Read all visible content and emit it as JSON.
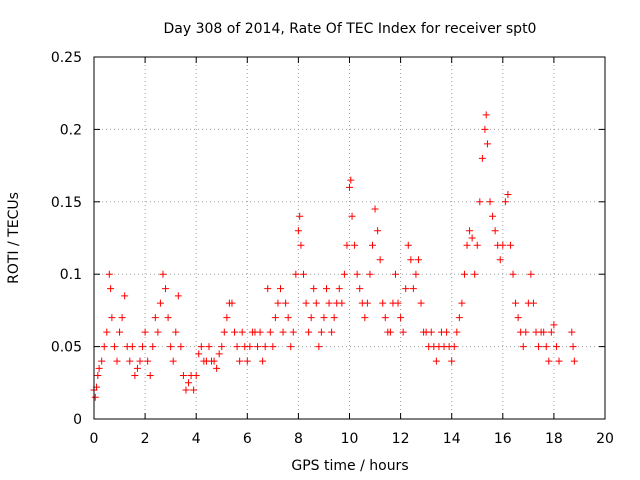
{
  "chart_data": {
    "type": "scatter",
    "title": "Day 308 of 2014, Rate Of TEC Index for receiver spt0",
    "xlabel": "GPS time / hours",
    "ylabel": "ROTI / TECUs",
    "xlim": [
      0,
      20
    ],
    "ylim": [
      0,
      0.25
    ],
    "xticks": [
      "0",
      "2",
      "4",
      "6",
      "8",
      "10",
      "12",
      "14",
      "16",
      "18",
      "20"
    ],
    "yticks": [
      "0",
      "0.05",
      "0.1",
      "0.15",
      "0.2",
      "0.25"
    ],
    "grid": true,
    "marker": "+",
    "color": "#ff0000",
    "series": [
      {
        "name": "ROTI spt0",
        "x": [
          0.0,
          0.05,
          0.1,
          0.15,
          0.2,
          0.3,
          0.4,
          0.5,
          0.6,
          0.65,
          0.7,
          0.8,
          0.9,
          1.0,
          1.1,
          1.2,
          1.3,
          1.4,
          1.5,
          1.6,
          1.7,
          1.8,
          1.9,
          2.0,
          2.1,
          2.2,
          2.3,
          2.4,
          2.5,
          2.6,
          2.7,
          2.8,
          2.9,
          3.0,
          3.1,
          3.2,
          3.3,
          3.4,
          3.5,
          3.6,
          3.7,
          3.8,
          3.9,
          4.0,
          4.1,
          4.2,
          4.3,
          4.4,
          4.5,
          4.6,
          4.7,
          4.8,
          4.9,
          5.0,
          5.1,
          5.2,
          5.3,
          5.4,
          5.5,
          5.6,
          5.7,
          5.8,
          5.9,
          6.0,
          6.1,
          6.2,
          6.3,
          6.4,
          6.5,
          6.6,
          6.7,
          6.8,
          6.9,
          7.0,
          7.1,
          7.2,
          7.3,
          7.4,
          7.5,
          7.6,
          7.7,
          7.8,
          7.9,
          8.0,
          8.05,
          8.1,
          8.2,
          8.3,
          8.4,
          8.5,
          8.6,
          8.7,
          8.8,
          8.9,
          9.0,
          9.1,
          9.2,
          9.3,
          9.4,
          9.5,
          9.6,
          9.7,
          9.8,
          9.9,
          10.0,
          10.05,
          10.1,
          10.2,
          10.3,
          10.4,
          10.5,
          10.6,
          10.7,
          10.8,
          10.9,
          11.0,
          11.1,
          11.2,
          11.3,
          11.4,
          11.5,
          11.6,
          11.7,
          11.8,
          11.9,
          12.0,
          12.1,
          12.2,
          12.3,
          12.4,
          12.5,
          12.6,
          12.7,
          12.8,
          12.9,
          13.0,
          13.1,
          13.2,
          13.3,
          13.4,
          13.5,
          13.6,
          13.7,
          13.8,
          13.9,
          14.0,
          14.1,
          14.2,
          14.3,
          14.4,
          14.5,
          14.6,
          14.7,
          14.8,
          14.9,
          15.0,
          15.1,
          15.2,
          15.3,
          15.35,
          15.4,
          15.5,
          15.6,
          15.7,
          15.8,
          15.9,
          16.0,
          16.1,
          16.2,
          16.3,
          16.4,
          16.5,
          16.6,
          16.7,
          16.8,
          16.9,
          17.0,
          17.1,
          17.2,
          17.3,
          17.4,
          17.5,
          17.6,
          17.7,
          17.8,
          17.9,
          18.0,
          18.1,
          18.2,
          18.7,
          18.75,
          18.8
        ],
        "y": [
          0.02,
          0.015,
          0.022,
          0.03,
          0.035,
          0.04,
          0.05,
          0.06,
          0.1,
          0.09,
          0.07,
          0.05,
          0.04,
          0.06,
          0.07,
          0.085,
          0.05,
          0.04,
          0.05,
          0.03,
          0.035,
          0.04,
          0.05,
          0.06,
          0.04,
          0.03,
          0.05,
          0.07,
          0.06,
          0.08,
          0.1,
          0.09,
          0.07,
          0.05,
          0.04,
          0.06,
          0.085,
          0.05,
          0.03,
          0.02,
          0.025,
          0.03,
          0.02,
          0.03,
          0.045,
          0.05,
          0.04,
          0.04,
          0.05,
          0.04,
          0.04,
          0.035,
          0.045,
          0.05,
          0.06,
          0.07,
          0.08,
          0.08,
          0.06,
          0.05,
          0.04,
          0.06,
          0.05,
          0.04,
          0.05,
          0.06,
          0.06,
          0.05,
          0.06,
          0.04,
          0.05,
          0.09,
          0.06,
          0.05,
          0.07,
          0.08,
          0.09,
          0.06,
          0.08,
          0.07,
          0.05,
          0.06,
          0.1,
          0.13,
          0.14,
          0.12,
          0.1,
          0.08,
          0.06,
          0.07,
          0.09,
          0.08,
          0.05,
          0.06,
          0.07,
          0.09,
          0.08,
          0.06,
          0.07,
          0.08,
          0.09,
          0.08,
          0.1,
          0.12,
          0.16,
          0.165,
          0.14,
          0.12,
          0.1,
          0.09,
          0.08,
          0.07,
          0.08,
          0.1,
          0.12,
          0.145,
          0.13,
          0.11,
          0.08,
          0.07,
          0.06,
          0.06,
          0.08,
          0.1,
          0.08,
          0.07,
          0.06,
          0.09,
          0.12,
          0.11,
          0.09,
          0.1,
          0.11,
          0.08,
          0.06,
          0.06,
          0.05,
          0.06,
          0.05,
          0.04,
          0.05,
          0.06,
          0.05,
          0.06,
          0.05,
          0.04,
          0.05,
          0.06,
          0.07,
          0.08,
          0.1,
          0.12,
          0.13,
          0.125,
          0.1,
          0.12,
          0.15,
          0.18,
          0.2,
          0.21,
          0.19,
          0.15,
          0.14,
          0.13,
          0.12,
          0.11,
          0.12,
          0.15,
          0.155,
          0.12,
          0.1,
          0.08,
          0.07,
          0.06,
          0.05,
          0.06,
          0.08,
          0.1,
          0.08,
          0.06,
          0.05,
          0.06,
          0.06,
          0.05,
          0.04,
          0.06,
          0.065,
          0.05,
          0.04,
          0.06,
          0.05,
          0.04
        ]
      }
    ]
  }
}
